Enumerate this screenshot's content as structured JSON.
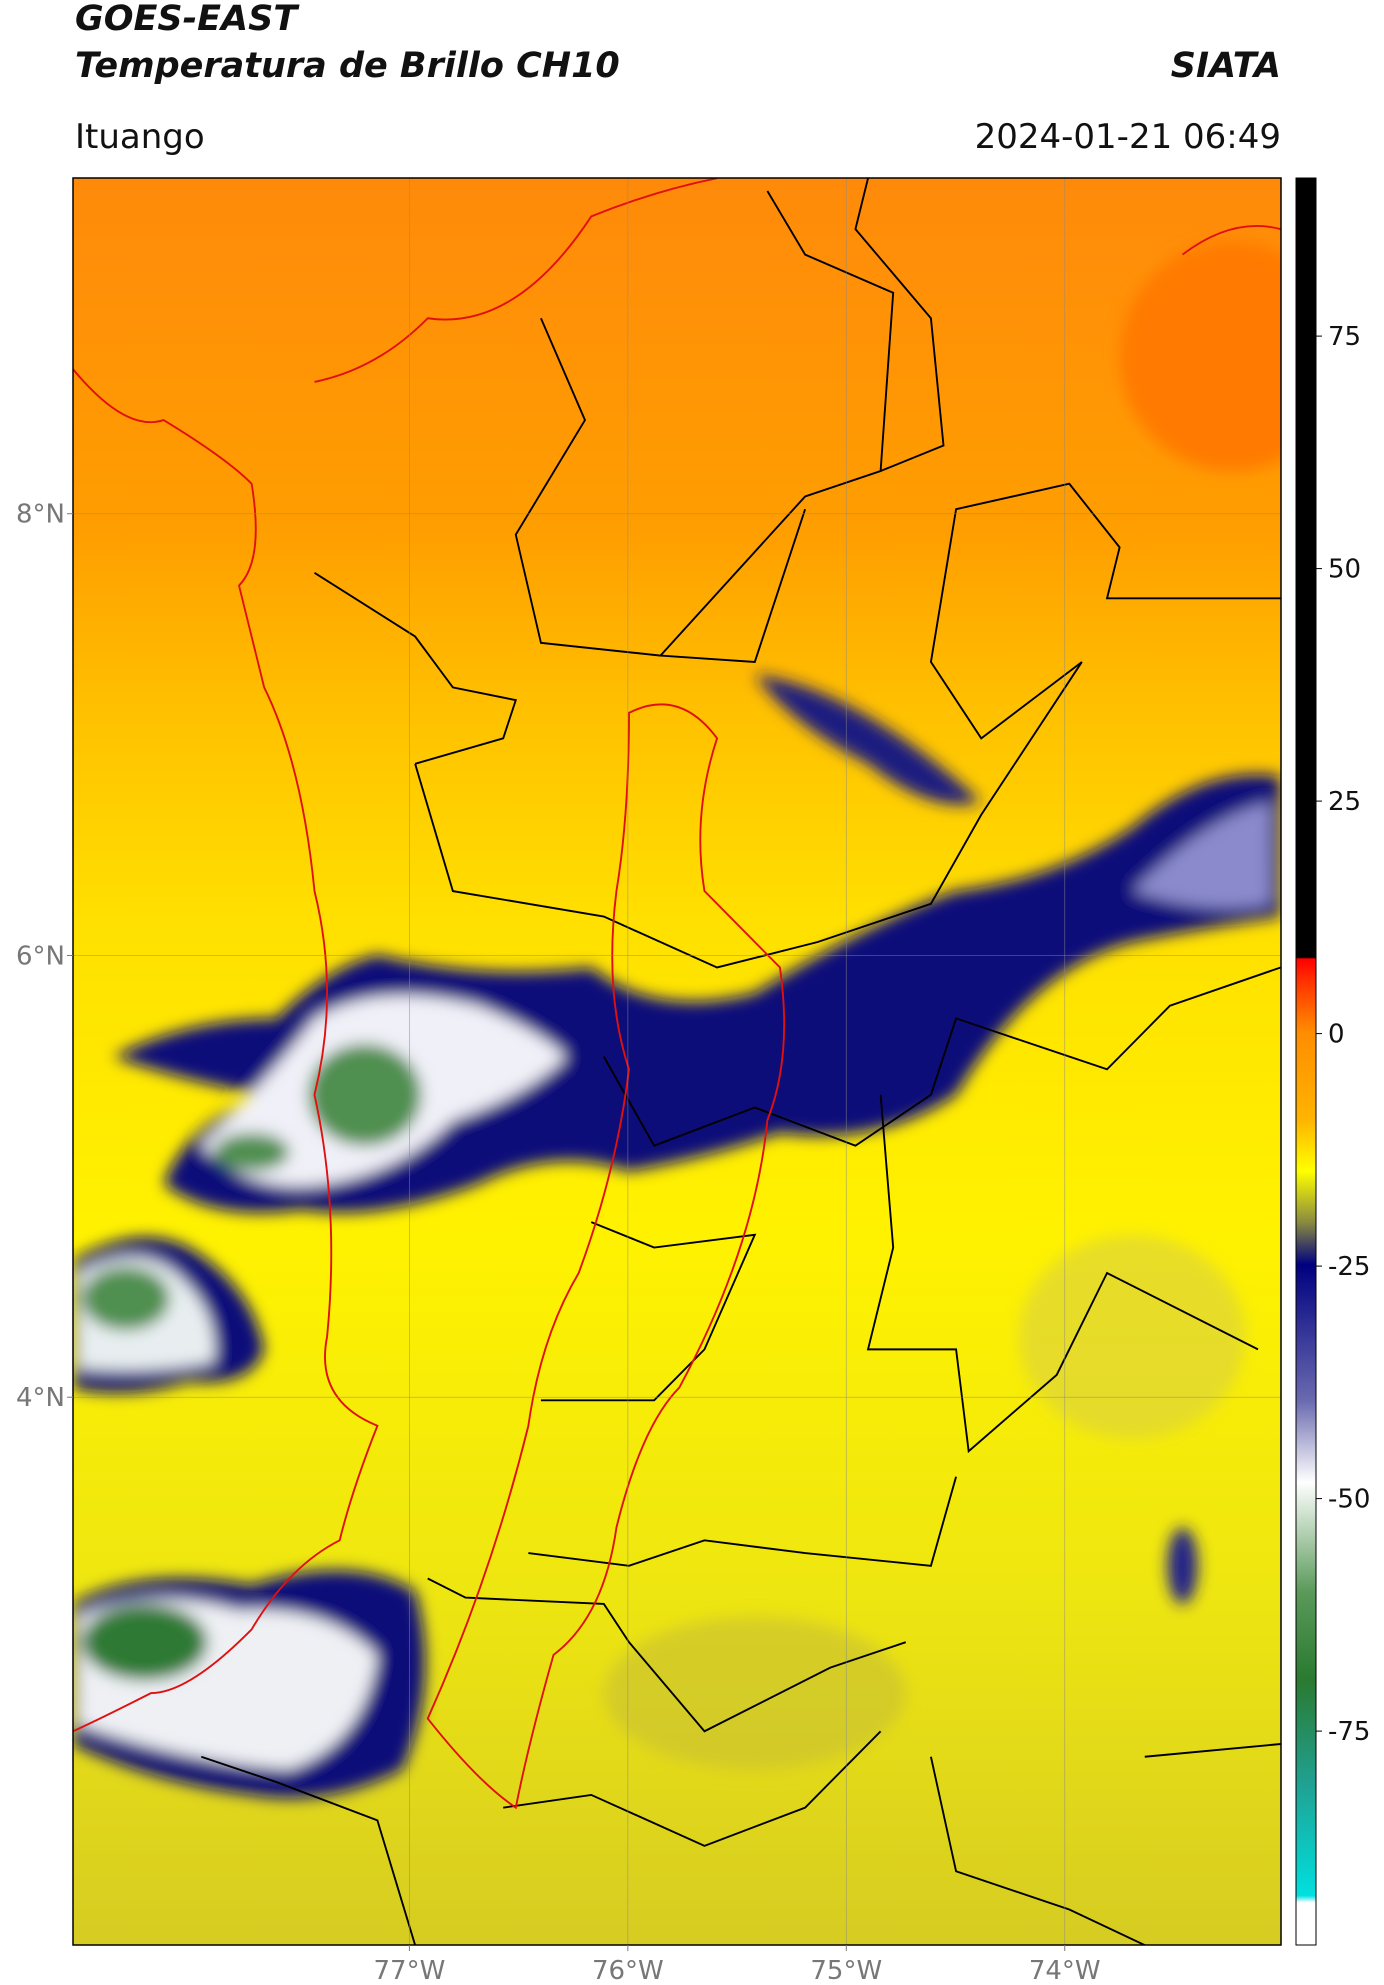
{
  "header": {
    "title": "GOES-EAST",
    "subtitle": "Temperatura de Brillo CH10",
    "source": "SIATA",
    "location": "Ituango",
    "datetime": "2024-01-21 06:49"
  },
  "map": {
    "xlim": [
      -78.54,
      -73.01
    ],
    "ylim": [
      1.52,
      9.52
    ],
    "xticks": [
      {
        "value": -77,
        "label": "77°W"
      },
      {
        "value": -76,
        "label": "76°W"
      },
      {
        "value": -75,
        "label": "75°W"
      },
      {
        "value": -74,
        "label": "74°W"
      }
    ],
    "yticks": [
      {
        "value": 8,
        "label": "8°N"
      },
      {
        "value": 6,
        "label": "6°N"
      },
      {
        "value": 4,
        "label": "4°N"
      }
    ],
    "grid": true
  },
  "colorbar": {
    "clim": [
      -98,
      92
    ],
    "ticks": [
      75,
      50,
      25,
      0,
      -25,
      -50,
      -75
    ]
  }
}
